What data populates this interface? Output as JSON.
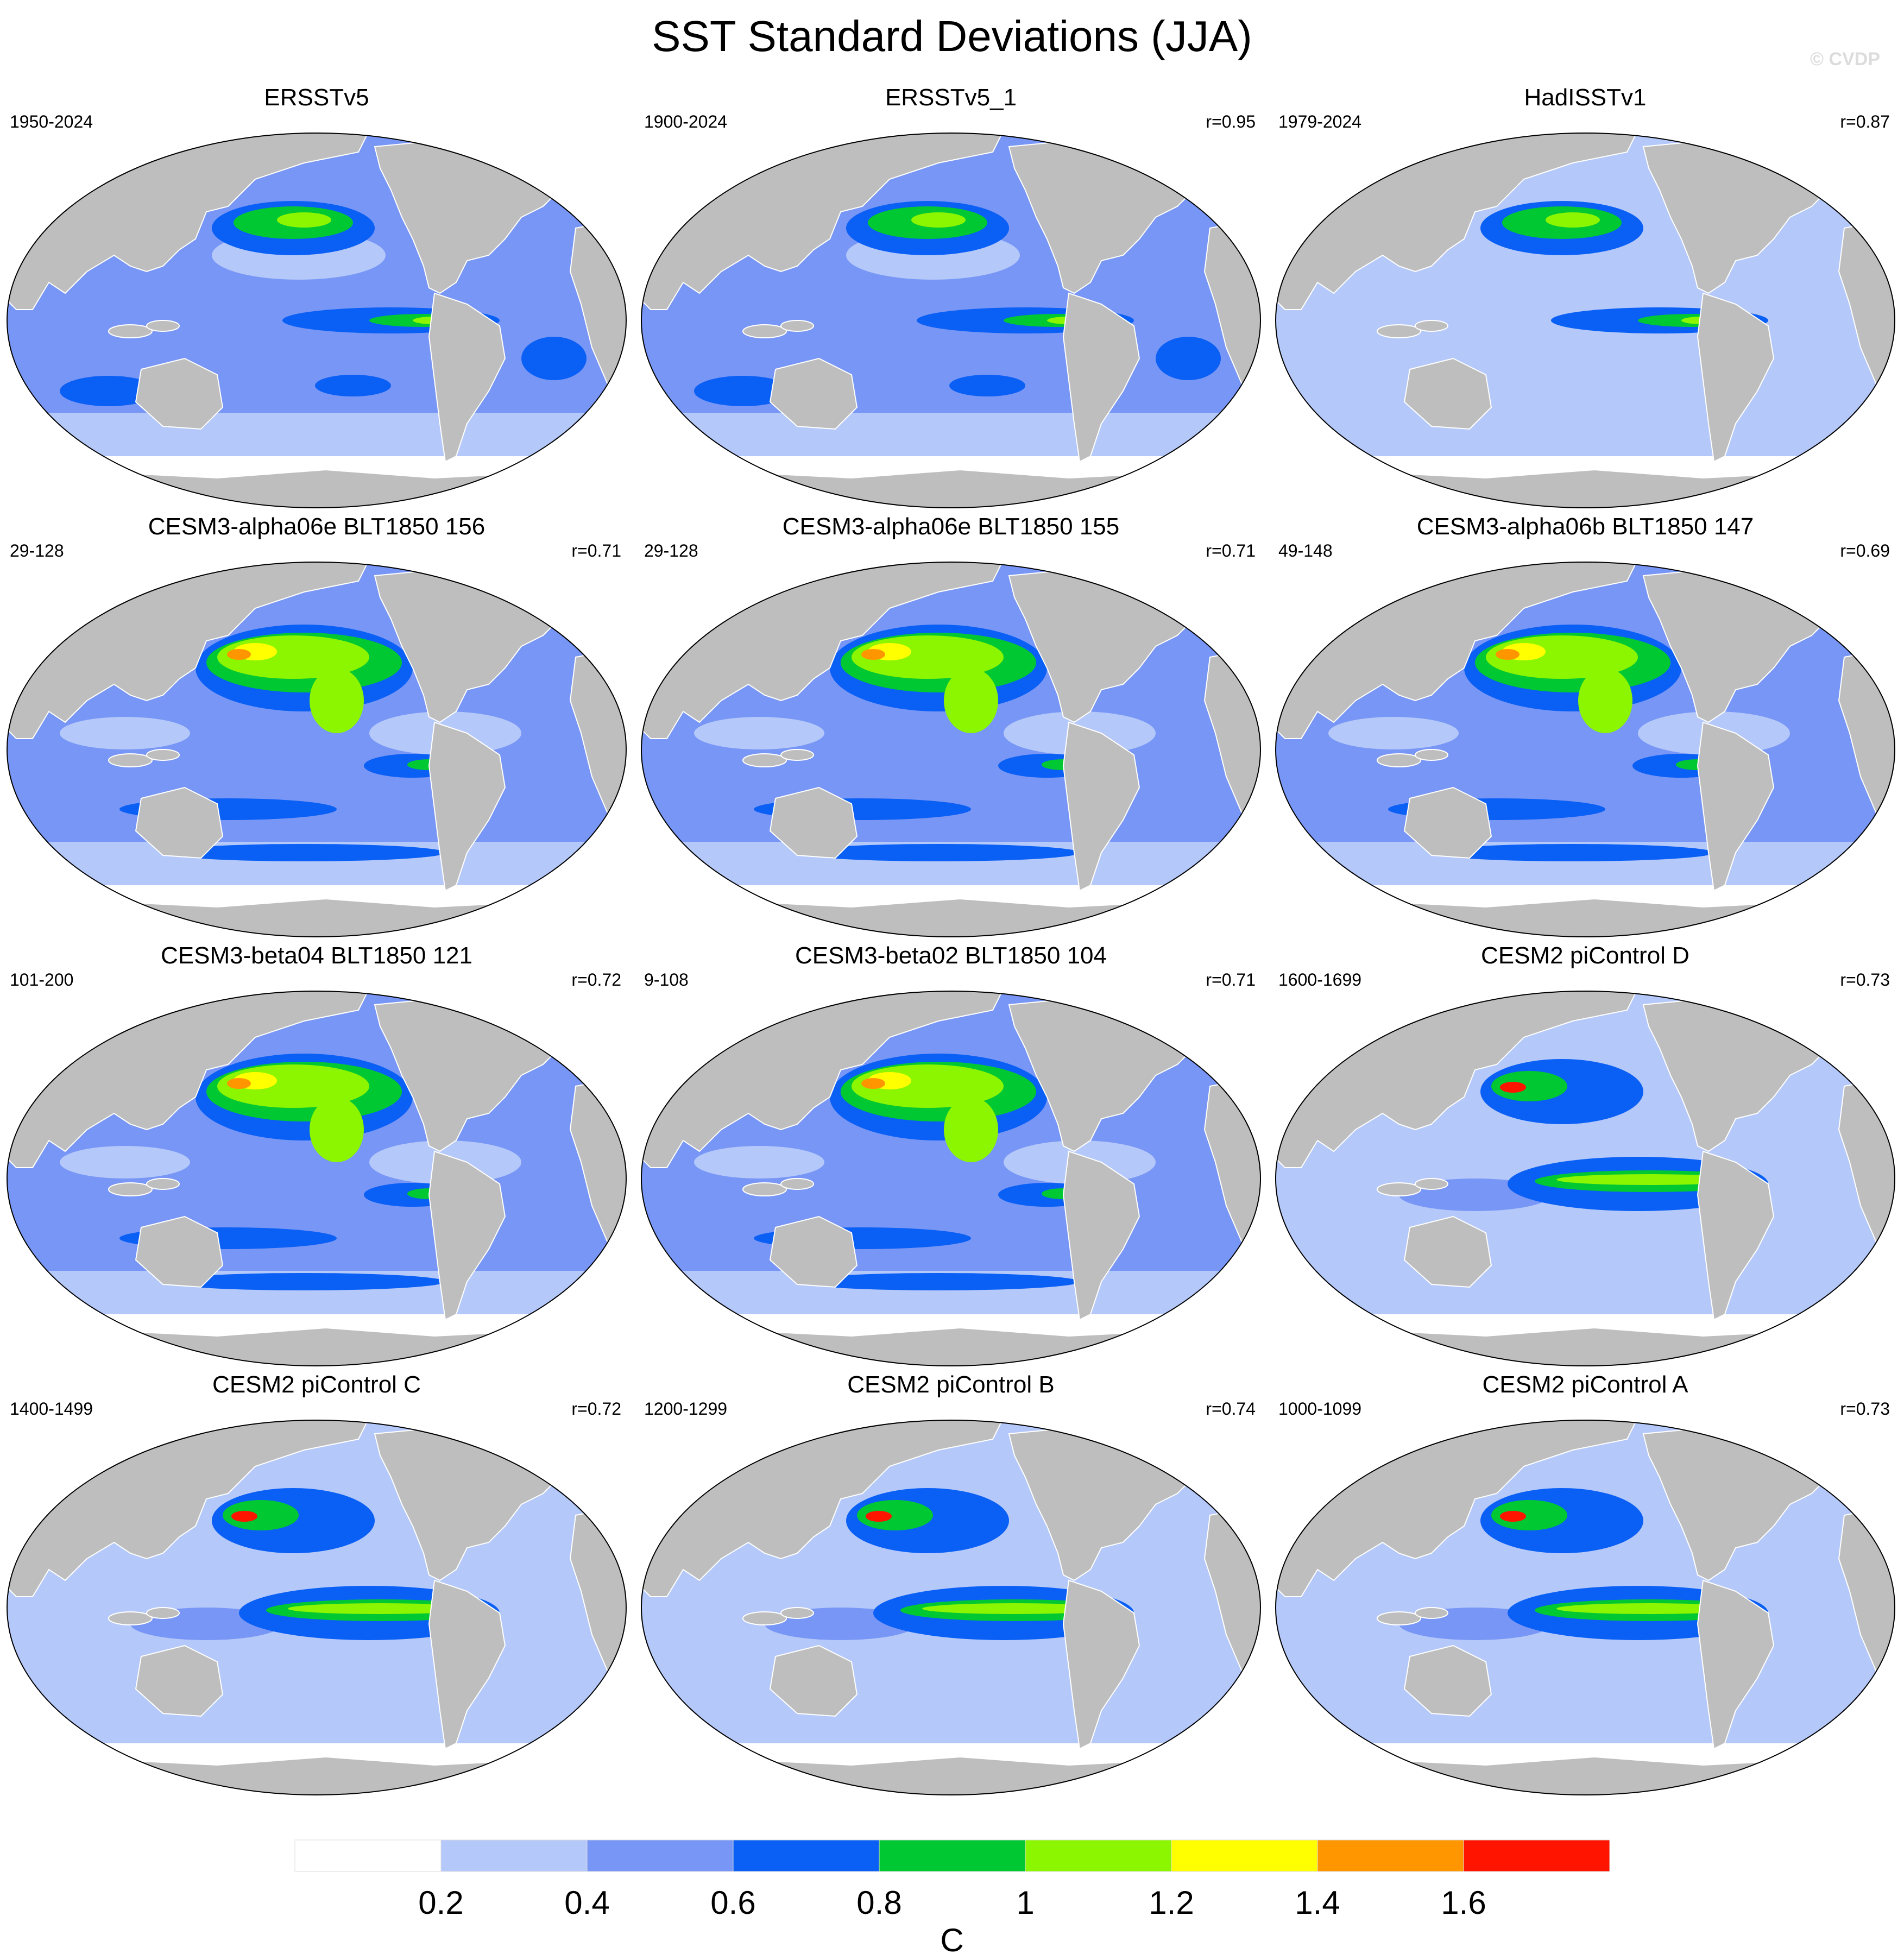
{
  "title": "SST Standard Deviations (JJA)",
  "watermark": "© CVDP",
  "panels": [
    {
      "title": "ERSSTv5",
      "years": "1950-2024",
      "r": "",
      "style": "obs"
    },
    {
      "title": "ERSSTv5_1",
      "years": "1900-2024",
      "r": "r=0.95",
      "style": "obs"
    },
    {
      "title": "HadISSTv1",
      "years": "1979-2024",
      "r": "r=0.87",
      "style": "obs-low"
    },
    {
      "title": "CESM3-alpha06e BLT1850 156",
      "years": "29-128",
      "r": "r=0.71",
      "style": "cesm3"
    },
    {
      "title": "CESM3-alpha06e BLT1850 155",
      "years": "29-128",
      "r": "r=0.71",
      "style": "cesm3"
    },
    {
      "title": "CESM3-alpha06b BLT1850 147",
      "years": "49-148",
      "r": "r=0.69",
      "style": "cesm3"
    },
    {
      "title": "CESM3-beta04 BLT1850 121",
      "years": "101-200",
      "r": "r=0.72",
      "style": "cesm3"
    },
    {
      "title": "CESM3-beta02 BLT1850 104",
      "years": "9-108",
      "r": "r=0.71",
      "style": "cesm3"
    },
    {
      "title": "CESM2 piControl D",
      "years": "1600-1699",
      "r": "r=0.73",
      "style": "cesm2"
    },
    {
      "title": "CESM2 piControl C",
      "years": "1400-1499",
      "r": "r=0.72",
      "style": "cesm2"
    },
    {
      "title": "CESM2 piControl B",
      "years": "1200-1299",
      "r": "r=0.74",
      "style": "cesm2"
    },
    {
      "title": "CESM2 piControl A",
      "years": "1000-1099",
      "r": "r=0.73",
      "style": "cesm2"
    }
  ],
  "colorbar": {
    "unit": "C",
    "labels": [
      "0.2",
      "0.4",
      "0.6",
      "0.8",
      "1",
      "1.2",
      "1.4",
      "1.6"
    ],
    "colors": [
      "#ffffff",
      "#b4c8fa",
      "#7896f5",
      "#0a5ff5",
      "#00c832",
      "#8cf500",
      "#ffff00",
      "#ff9600",
      "#ff1400"
    ]
  },
  "colors": {
    "land": "#bebebe",
    "ocean_low": "#b4c8fa"
  }
}
